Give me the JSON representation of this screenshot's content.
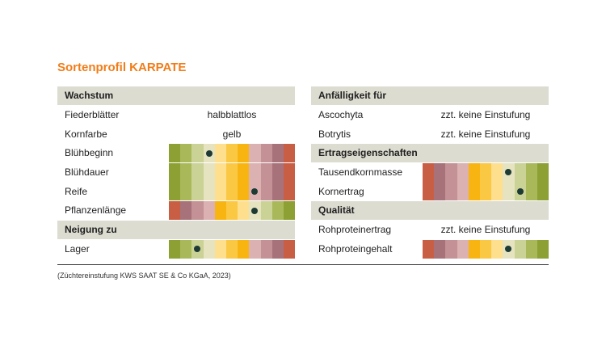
{
  "title": "Sortenprofil KARPATE",
  "footnote": "(Züchtereinstufung KWS SAAT SE & Co KGaA, 2023)",
  "palettes": {
    "green_to_red": [
      "#8ca033",
      "#a9b95a",
      "#cbd295",
      "#e6e4c0",
      "#fddf8e",
      "#fbc843",
      "#f8b512",
      "#dbb1b1",
      "#c49296",
      "#a8727a",
      "#c85f45"
    ],
    "red_to_green": [
      "#c85f45",
      "#a8727a",
      "#c49296",
      "#dbb1b1",
      "#f8b512",
      "#fbc843",
      "#fddf8e",
      "#e6e4c0",
      "#cbd295",
      "#a9b95a",
      "#8ca033"
    ],
    "green_to_red_short": [
      "#8ca033",
      "#a9b95a",
      "#cbd295",
      "#e6e4c0",
      "#fddf8e",
      "#fbc843",
      "#f8b512",
      "#dbb1b1",
      "#c49296",
      "#a8727a",
      "#c85f45"
    ]
  },
  "left": [
    {
      "type": "header",
      "label": "Wachstum"
    },
    {
      "type": "text",
      "label": "Fiederblätter",
      "value": "halbblattlos"
    },
    {
      "type": "text",
      "label": "Kornfarbe",
      "value": "gelb"
    },
    {
      "type": "scale",
      "label": "Blühbeginn",
      "palette": "green_to_red",
      "level": 4
    },
    {
      "type": "scale",
      "label": "Blühdauer",
      "palette": "green_to_red",
      "level": null
    },
    {
      "type": "scale",
      "label": "Reife",
      "palette": "green_to_red",
      "level": 8
    },
    {
      "type": "scale",
      "label": "Pflanzenlänge",
      "palette": "red_to_green",
      "level": 8
    },
    {
      "type": "header",
      "label": "Neigung zu"
    },
    {
      "type": "scale",
      "label": "Lager",
      "palette": "green_to_red",
      "level": 3
    }
  ],
  "right": [
    {
      "type": "header",
      "label": "Anfälligkeit für"
    },
    {
      "type": "text",
      "label": "Ascochyta",
      "value": "zzt. keine Einstufung"
    },
    {
      "type": "text",
      "label": "Botrytis",
      "value": "zzt. keine Einstufung"
    },
    {
      "type": "header",
      "label": "Ertragseigenschaften"
    },
    {
      "type": "scale",
      "label": "Tausendkornmasse",
      "palette": "red_to_green",
      "level": 8
    },
    {
      "type": "scale",
      "label": "Kornertrag",
      "palette": "red_to_green",
      "level": 9
    },
    {
      "type": "header",
      "label": "Qualität"
    },
    {
      "type": "text",
      "label": "Rohproteinertrag",
      "value": "zzt. keine Einstufung"
    },
    {
      "type": "scale",
      "label": "Rohproteingehalt",
      "palette": "red_to_green",
      "level": 8
    }
  ]
}
